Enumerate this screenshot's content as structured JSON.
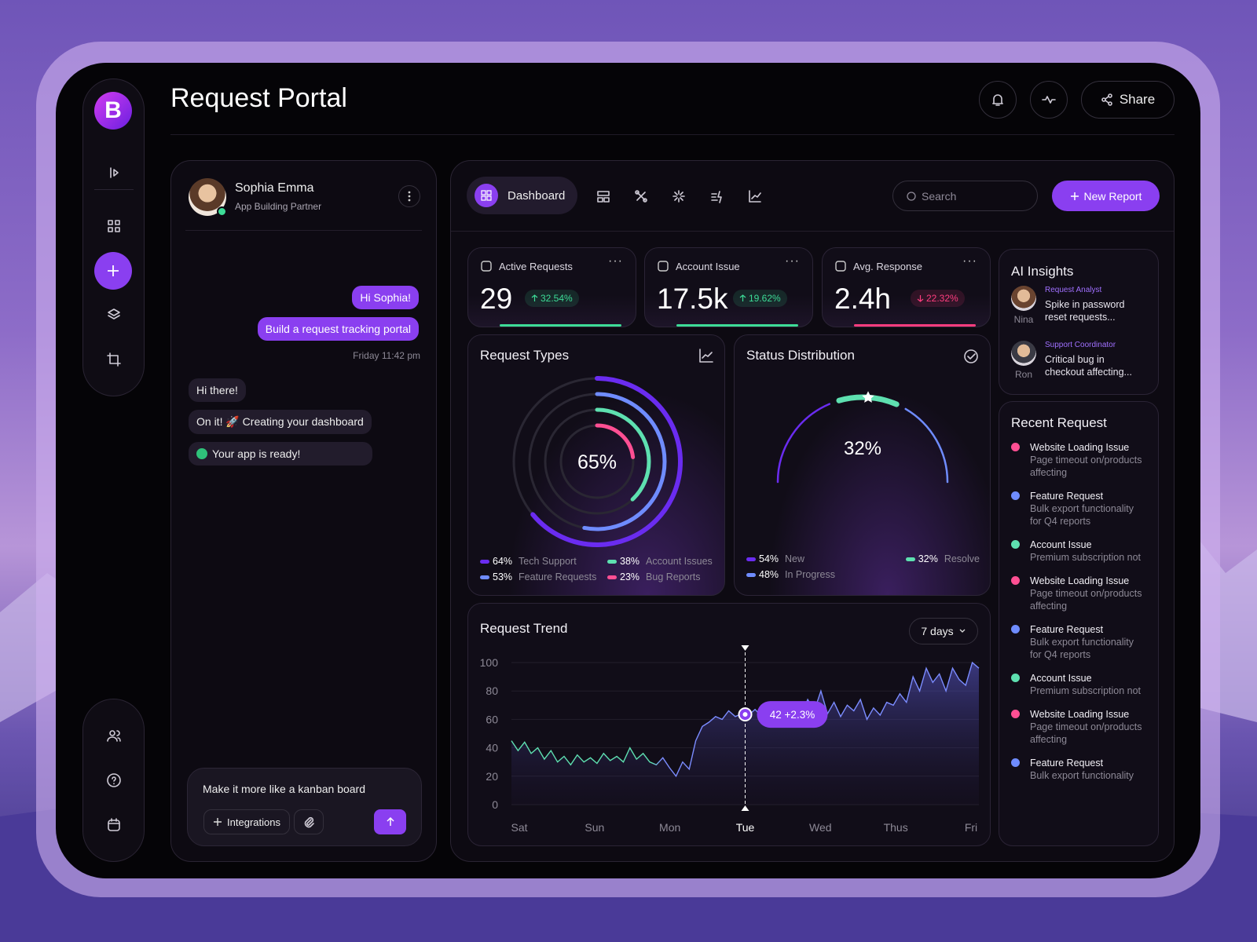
{
  "header": {
    "title": "Request Portal",
    "share": "Share"
  },
  "chat": {
    "name": "Sophia Emma",
    "role": "App Building Partner",
    "sent": [
      "Hi Sophia!",
      "Build a request tracking portal"
    ],
    "time": "Friday 11:42 pm",
    "replies": [
      "Hi there!",
      "On it! 🚀 Creating your dashboard",
      "Your app is ready!"
    ],
    "prompt": "Make it more like a kanban board",
    "integrations": "Integrations"
  },
  "toolbar": {
    "tab": "Dashboard",
    "search": "Search",
    "new_report": "New Report"
  },
  "kpis": [
    {
      "label": "Active Requests",
      "value": "29",
      "change": "32.54%",
      "trend": "up",
      "color": "#3ddc97"
    },
    {
      "label": "Account Issue",
      "value": "17.5k",
      "change": "19.62%",
      "trend": "up",
      "color": "#3ddc97"
    },
    {
      "label": "Avg. Response",
      "value": "2.4h",
      "change": "22.32%",
      "trend": "down",
      "color": "#ff3d7f"
    }
  ],
  "request_types": {
    "title": "Request Types",
    "center": "65%",
    "segments": [
      {
        "name": "Tech Support",
        "value": 64,
        "value_label": "64%",
        "color": "#6a2cf0"
      },
      {
        "name": "Feature Requests",
        "value": 53,
        "value_label": "53%",
        "color": "#6f8cff"
      },
      {
        "name": "Account Issues",
        "value": 38,
        "value_label": "38%",
        "color": "#5ee0b0"
      },
      {
        "name": "Bug Reports",
        "value": 23,
        "value_label": "23%",
        "color": "#ff4f93"
      }
    ]
  },
  "status": {
    "title": "Status Distribution",
    "center": "32%",
    "segments": [
      {
        "name": "New",
        "value": 54,
        "value_label": "54%",
        "color": "#6a2cf0"
      },
      {
        "name": "In Progress",
        "value": 48,
        "value_label": "48%",
        "color": "#6f8cff"
      },
      {
        "name": "Resolve",
        "value": 32,
        "value_label": "32%",
        "color": "#5ee0b0"
      }
    ]
  },
  "trend": {
    "type": "line",
    "title": "Request Trend",
    "range": "7 days",
    "categories": [
      "Sat",
      "Sun",
      "Mon",
      "Tue",
      "Wed",
      "Thus",
      "Fri"
    ],
    "ylim": [
      0,
      100
    ],
    "yticks": [
      0,
      20,
      40,
      60,
      80,
      100
    ],
    "color": "#7b8cff",
    "annotation": "42 +2.3%",
    "values": [
      45,
      38,
      44,
      36,
      40,
      32,
      38,
      30,
      34,
      28,
      35,
      30,
      33,
      29,
      36,
      31,
      34,
      30,
      40,
      32,
      36,
      30,
      28,
      33,
      26,
      20,
      30,
      25,
      45,
      55,
      58,
      62,
      60,
      66,
      62,
      64,
      63,
      67,
      62,
      65,
      60,
      68,
      64,
      70,
      62,
      74,
      66,
      80,
      64,
      72,
      62,
      70,
      66,
      74,
      60,
      68,
      63,
      72,
      70,
      78,
      72,
      90,
      80,
      96,
      86,
      92,
      80,
      96,
      88,
      84,
      100,
      96
    ]
  },
  "insights": {
    "title": "AI Insights",
    "items": [
      {
        "name": "Nina",
        "role": "Request Analyst",
        "text": "Spike in password reset requests..."
      },
      {
        "name": "Ron",
        "role": "Support Coordinator",
        "text": "Critical bug in checkout affecting..."
      }
    ]
  },
  "recent": {
    "title": "Recent Request",
    "items": [
      {
        "title": "Website Loading Issue",
        "text": "Page timeout on/products affecting",
        "color": "#ff4f93"
      },
      {
        "title": "Feature Request",
        "text": "Bulk export functionality for Q4 reports",
        "color": "#6f8cff"
      },
      {
        "title": "Account Issue",
        "text": "Premium subscription not",
        "color": "#5ee0b0"
      },
      {
        "title": "Website Loading Issue",
        "text": "Page timeout on/products affecting",
        "color": "#ff4f93"
      },
      {
        "title": "Feature Request",
        "text": "Bulk export functionality for Q4 reports",
        "color": "#6f8cff"
      },
      {
        "title": "Account Issue",
        "text": "Premium subscription not",
        "color": "#5ee0b0"
      },
      {
        "title": "Website Loading Issue",
        "text": "Page timeout on/products affecting",
        "color": "#ff4f93"
      },
      {
        "title": "Feature Request",
        "text": "Bulk export functionality",
        "color": "#6f8cff"
      }
    ]
  }
}
